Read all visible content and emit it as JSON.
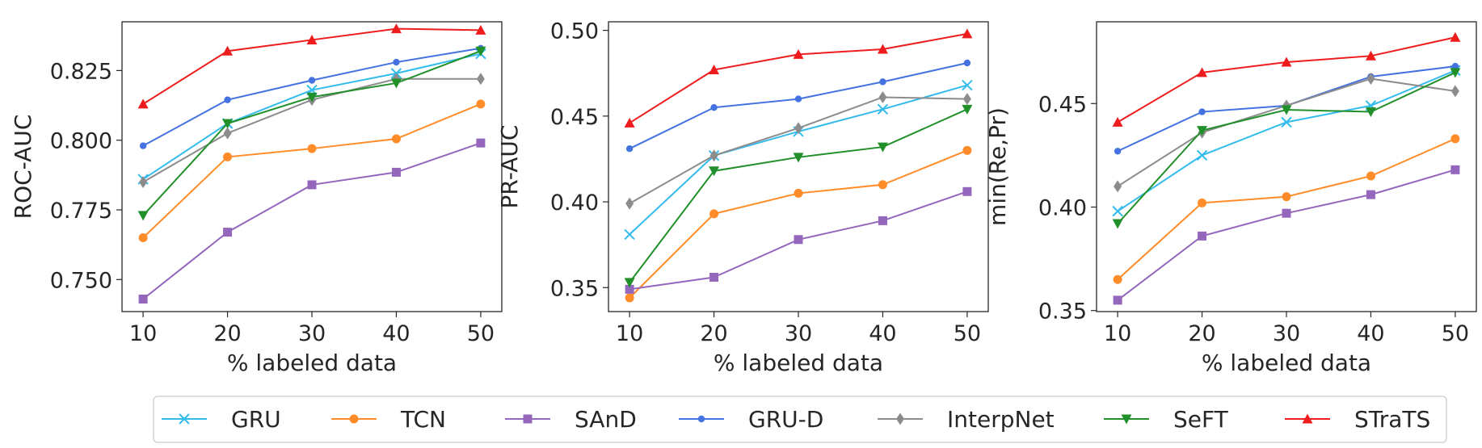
{
  "chart_data": [
    {
      "type": "line",
      "xlabel": "% labeled data",
      "ylabel": "ROC-AUC",
      "x": [
        10,
        20,
        30,
        40,
        50
      ],
      "xlim": [
        7.5,
        52.5
      ],
      "ylim": [
        0.7385,
        0.8425
      ],
      "xticks": [
        "10",
        "20",
        "30",
        "40",
        "50"
      ],
      "yticks": [
        0.75,
        0.775,
        0.8,
        0.825
      ],
      "ytick_labels": [
        "0.750",
        "0.775",
        "0.800",
        "0.825"
      ],
      "series": [
        {
          "name": "GRU",
          "values": [
            0.786,
            0.806,
            0.818,
            0.824,
            0.831
          ]
        },
        {
          "name": "TCN",
          "values": [
            0.765,
            0.794,
            0.797,
            0.8005,
            0.813
          ]
        },
        {
          "name": "SAnD",
          "values": [
            0.743,
            0.767,
            0.784,
            0.7885,
            0.799
          ]
        },
        {
          "name": "GRU-D",
          "values": [
            0.798,
            0.8145,
            0.8215,
            0.828,
            0.833
          ]
        },
        {
          "name": "InterpNet",
          "values": [
            0.785,
            0.8025,
            0.8145,
            0.822,
            0.822
          ]
        },
        {
          "name": "SeFT",
          "values": [
            0.773,
            0.806,
            0.8155,
            0.8205,
            0.832
          ]
        },
        {
          "name": "STraTS",
          "values": [
            0.813,
            0.832,
            0.836,
            0.84,
            0.8395
          ]
        }
      ]
    },
    {
      "type": "line",
      "xlabel": "% labeled data",
      "ylabel": "PR-AUC",
      "x": [
        10,
        20,
        30,
        40,
        50
      ],
      "xlim": [
        7.5,
        52.5
      ],
      "ylim": [
        0.336,
        0.505
      ],
      "xticks": [
        "10",
        "20",
        "30",
        "40",
        "50"
      ],
      "yticks": [
        0.35,
        0.4,
        0.45,
        0.5
      ],
      "ytick_labels": [
        "0.35",
        "0.40",
        "0.45",
        "0.50"
      ],
      "series": [
        {
          "name": "GRU",
          "values": [
            0.381,
            0.427,
            0.441,
            0.454,
            0.468
          ]
        },
        {
          "name": "TCN",
          "values": [
            0.344,
            0.393,
            0.405,
            0.41,
            0.43
          ]
        },
        {
          "name": "SAnD",
          "values": [
            0.349,
            0.356,
            0.378,
            0.389,
            0.406
          ]
        },
        {
          "name": "GRU-D",
          "values": [
            0.431,
            0.455,
            0.46,
            0.47,
            0.481
          ]
        },
        {
          "name": "InterpNet",
          "values": [
            0.399,
            0.427,
            0.443,
            0.461,
            0.46
          ]
        },
        {
          "name": "SeFT",
          "values": [
            0.353,
            0.418,
            0.426,
            0.432,
            0.454
          ]
        },
        {
          "name": "STraTS",
          "values": [
            0.446,
            0.477,
            0.486,
            0.489,
            0.498
          ]
        }
      ]
    },
    {
      "type": "line",
      "xlabel": "% labeled data",
      "ylabel": "min(Re,Pr)",
      "x": [
        10,
        20,
        30,
        40,
        50
      ],
      "xlim": [
        7.5,
        52.5
      ],
      "ylim": [
        0.3495,
        0.4895
      ],
      "xticks": [
        "10",
        "20",
        "30",
        "40",
        "50"
      ],
      "yticks": [
        0.35,
        0.4,
        0.45
      ],
      "ytick_labels": [
        "0.35",
        "0.40",
        "0.45"
      ],
      "series": [
        {
          "name": "GRU",
          "values": [
            0.398,
            0.425,
            0.441,
            0.449,
            0.466
          ]
        },
        {
          "name": "TCN",
          "values": [
            0.365,
            0.402,
            0.405,
            0.415,
            0.433
          ]
        },
        {
          "name": "SAnD",
          "values": [
            0.355,
            0.386,
            0.397,
            0.406,
            0.418
          ]
        },
        {
          "name": "GRU-D",
          "values": [
            0.427,
            0.446,
            0.449,
            0.463,
            0.468
          ]
        },
        {
          "name": "InterpNet",
          "values": [
            0.41,
            0.436,
            0.449,
            0.462,
            0.456
          ]
        },
        {
          "name": "SeFT",
          "values": [
            0.392,
            0.437,
            0.447,
            0.446,
            0.465
          ]
        },
        {
          "name": "STraTS",
          "values": [
            0.441,
            0.465,
            0.47,
            0.473,
            0.482
          ]
        }
      ]
    }
  ],
  "legend": {
    "placement": "bottom-center",
    "entries": [
      {
        "name": "GRU",
        "color": "#33bbee",
        "marker": "x"
      },
      {
        "name": "TCN",
        "color": "#ff8c28",
        "marker": "circle"
      },
      {
        "name": "SAnD",
        "color": "#9467bd",
        "marker": "square"
      },
      {
        "name": "GRU-D",
        "color": "#4472e0",
        "marker": "dot"
      },
      {
        "name": "InterpNet",
        "color": "#8c8c8c",
        "marker": "diamond"
      },
      {
        "name": "SeFT",
        "color": "#21902a",
        "marker": "triangle-down"
      },
      {
        "name": "STraTS",
        "color": "#ee1c1c",
        "marker": "triangle-up"
      }
    ]
  }
}
